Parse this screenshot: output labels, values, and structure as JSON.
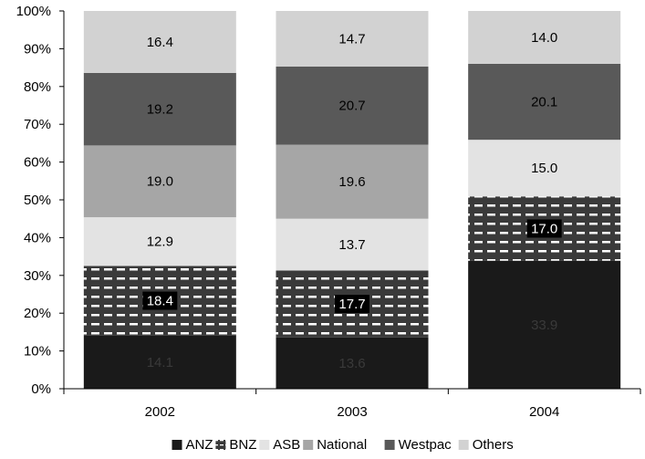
{
  "chart_data": {
    "type": "bar",
    "stacked": true,
    "percent": true,
    "categories": [
      "2002",
      "2003",
      "2004"
    ],
    "series": [
      {
        "name": "ANZ",
        "values": [
          14.1,
          13.6,
          33.9
        ],
        "color": "#1a1a1a",
        "pattern": "solid",
        "label_style": "dark-text"
      },
      {
        "name": "BNZ",
        "values": [
          18.4,
          17.7,
          17.0
        ],
        "color": "#3a3a3a",
        "pattern": "dashes",
        "label_style": "boxed"
      },
      {
        "name": "ASB",
        "values": [
          12.9,
          13.7,
          15.0
        ],
        "color": "#e3e3e3",
        "pattern": "solid",
        "label_style": "plain"
      },
      {
        "name": "National",
        "values": [
          19.0,
          19.6,
          0
        ],
        "color": "#a6a6a6",
        "pattern": "solid",
        "label_style": "plain"
      },
      {
        "name": "Westpac",
        "values": [
          19.2,
          20.7,
          20.1
        ],
        "color": "#595959",
        "pattern": "solid",
        "label_style": "plain"
      },
      {
        "name": "Others",
        "values": [
          16.4,
          14.7,
          14.0
        ],
        "color": "#d2d2d2",
        "pattern": "solid",
        "label_style": "plain"
      }
    ],
    "data_labels": [
      [
        "14.1",
        "13.6",
        "33.9"
      ],
      [
        "18.4",
        "17.7",
        "17.0"
      ],
      [
        "12.9",
        "13.7",
        "15.0"
      ],
      [
        "19.0",
        "19.6",
        ""
      ],
      [
        "19.2",
        "20.7",
        "20.1"
      ],
      [
        "16.4",
        "14.7",
        "14.0"
      ]
    ],
    "y_ticks": [
      "0%",
      "10%",
      "20%",
      "30%",
      "40%",
      "50%",
      "60%",
      "70%",
      "80%",
      "90%",
      "100%"
    ],
    "ylim": [
      0,
      100
    ],
    "title": "",
    "xlabel": "",
    "ylabel": "",
    "grid": false,
    "legend_position": "bottom"
  }
}
